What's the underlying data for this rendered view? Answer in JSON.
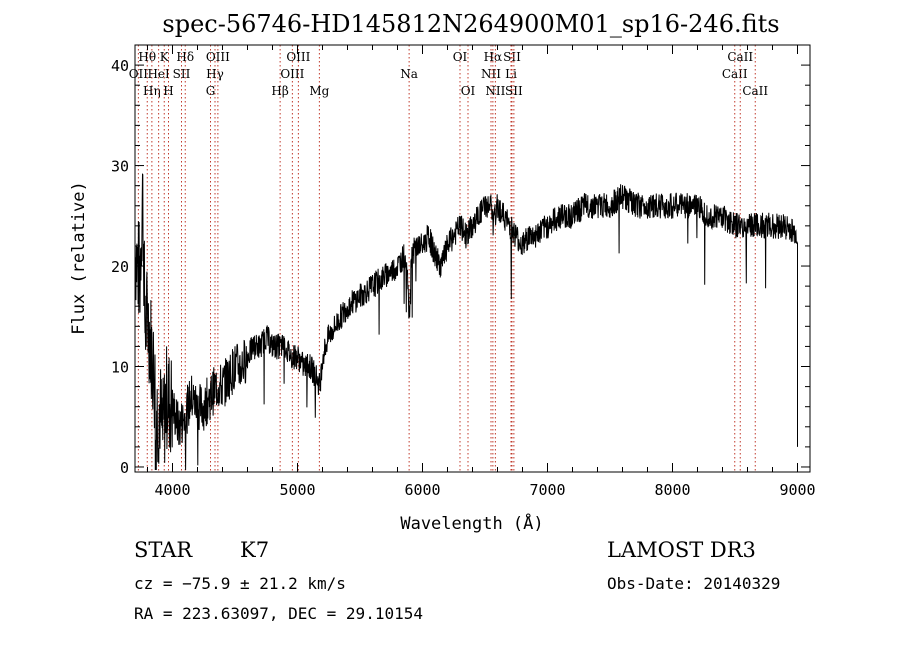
{
  "chart_data": {
    "type": "line",
    "title": "spec-56746-HD145812N264900M01_sp16-246.fits",
    "xlabel": "Wavelength (Å)",
    "ylabel": "Flux (relative)",
    "xlim": [
      3700,
      9100
    ],
    "ylim": [
      -0.5,
      42
    ],
    "xticks": [
      4000,
      5000,
      6000,
      7000,
      8000,
      9000
    ],
    "xtick_labels": [
      "4000",
      "5000",
      "6000",
      "7000",
      "8000",
      "9000"
    ],
    "yticks": [
      0,
      10,
      20,
      30,
      40
    ],
    "ytick_labels": [
      "0",
      "10",
      "20",
      "30",
      "40"
    ],
    "grid": false,
    "line_color": "#000000",
    "marker_color": "#c0392b",
    "spectrum_anchor_points": {
      "x": [
        3700,
        3720,
        3740,
        3760,
        3780,
        3800,
        3830,
        3860,
        3880,
        3900,
        3920,
        3950,
        4000,
        4050,
        4100,
        4150,
        4200,
        4250,
        4300,
        4350,
        4400,
        4450,
        4500,
        4550,
        4600,
        4650,
        4700,
        4750,
        4800,
        4850,
        4900,
        4950,
        5000,
        5050,
        5100,
        5150,
        5180,
        5200,
        5250,
        5300,
        5350,
        5400,
        5500,
        5600,
        5700,
        5800,
        5850,
        5880,
        5893,
        5910,
        5950,
        6000,
        6050,
        6100,
        6150,
        6200,
        6250,
        6300,
        6350,
        6400,
        6450,
        6500,
        6550,
        6563,
        6600,
        6650,
        6700,
        6750,
        6800,
        6850,
        6900,
        7000,
        7100,
        7200,
        7300,
        7400,
        7500,
        7600,
        7700,
        7800,
        7900,
        8000,
        8100,
        8200,
        8300,
        8400,
        8500,
        8600,
        8700,
        8800,
        8900,
        9000
      ],
      "y": [
        22,
        20,
        19,
        28,
        14,
        15,
        12,
        8,
        5,
        6,
        3,
        7,
        6,
        4,
        5,
        7,
        6,
        6,
        7,
        8,
        8,
        9,
        10,
        10,
        11,
        12,
        12,
        13,
        12,
        12,
        12,
        11,
        11,
        10,
        10,
        9,
        8,
        11,
        13,
        14,
        15,
        16,
        17,
        18,
        19,
        20,
        21,
        20,
        14,
        21,
        22,
        22,
        23,
        21,
        20,
        22,
        23,
        24,
        23,
        24,
        25,
        26,
        26,
        24,
        26,
        25,
        24,
        23,
        22,
        23,
        23,
        24,
        25,
        25,
        26,
        26,
        26,
        27,
        26,
        26,
        26,
        26,
        26,
        26,
        25,
        25,
        24,
        24,
        24,
        24,
        24,
        23
      ]
    },
    "line_markers": [
      {
        "label": "OII",
        "wavelength": 3727,
        "row": 1
      },
      {
        "label": "Hθ",
        "wavelength": 3798,
        "row": 0
      },
      {
        "label": "Hη",
        "wavelength": 3835,
        "row": 2
      },
      {
        "label": "HeI",
        "wavelength": 3889,
        "row": 1
      },
      {
        "label": "K",
        "wavelength": 3934,
        "row": 0
      },
      {
        "label": "H",
        "wavelength": 3968,
        "row": 2
      },
      {
        "label": "SII",
        "wavelength": 4072,
        "row": 1
      },
      {
        "label": "Hδ",
        "wavelength": 4102,
        "row": 0
      },
      {
        "label": "G",
        "wavelength": 4304,
        "row": 2
      },
      {
        "label": "Hγ",
        "wavelength": 4340,
        "row": 1
      },
      {
        "label": "OIII",
        "wavelength": 4363,
        "row": 0
      },
      {
        "label": "Hβ",
        "wavelength": 4861,
        "row": 2
      },
      {
        "label": "OIII",
        "wavelength": 4959,
        "row": 1
      },
      {
        "label": "OIII",
        "wavelength": 5007,
        "row": 0
      },
      {
        "label": "Mg",
        "wavelength": 5175,
        "row": 2
      },
      {
        "label": "Na",
        "wavelength": 5893,
        "row": 1
      },
      {
        "label": "OI",
        "wavelength": 6300,
        "row": 0
      },
      {
        "label": "OI",
        "wavelength": 6364,
        "row": 2
      },
      {
        "label": "NII",
        "wavelength": 6548,
        "row": 1
      },
      {
        "label": "Hα",
        "wavelength": 6563,
        "row": 0
      },
      {
        "label": "NII",
        "wavelength": 6583,
        "row": 2
      },
      {
        "label": "Li",
        "wavelength": 6708,
        "row": 1
      },
      {
        "label": "SII",
        "wavelength": 6716,
        "row": 0
      },
      {
        "label": "SII",
        "wavelength": 6731,
        "row": 2
      },
      {
        "label": "CaII",
        "wavelength": 8498,
        "row": 1
      },
      {
        "label": "CaII",
        "wavelength": 8542,
        "row": 0
      },
      {
        "label": "CaII",
        "wavelength": 8662,
        "row": 2
      }
    ]
  },
  "info": {
    "obj_class": "STAR",
    "obj_subclass": "K7",
    "survey": "LAMOST DR3",
    "cz": "cz = −75.9 ± 21.2 km/s",
    "obs_date": "Obs-Date: 20140329",
    "radec": "RA = 223.63097, DEC =  29.10154"
  }
}
